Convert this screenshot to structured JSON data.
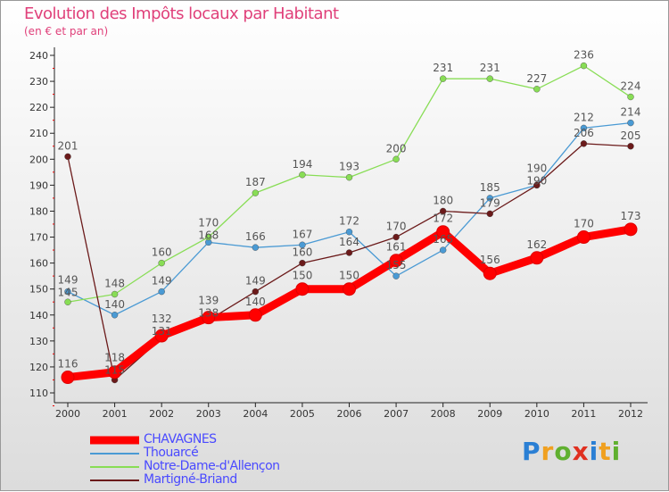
{
  "chart_data": {
    "type": "line",
    "title": "Evolution des Impôts locaux par Habitant",
    "subtitle": "(en € et par an)",
    "xlabel": "",
    "ylabel": "",
    "x": [
      "2000",
      "2001",
      "2002",
      "2003",
      "2004",
      "2005",
      "2006",
      "2007",
      "2008",
      "2009",
      "2010",
      "2011",
      "2012"
    ],
    "ylim": [
      110,
      240
    ],
    "yticks": [
      110,
      120,
      130,
      140,
      150,
      160,
      170,
      180,
      190,
      200,
      210,
      220,
      230,
      240
    ],
    "legend": "bottom-left",
    "series": [
      {
        "name": "CHAVAGNES",
        "color": "#ff0000",
        "values": [
          116,
          118,
          132,
          139,
          140,
          150,
          150,
          161,
          172,
          156,
          162,
          170,
          173
        ]
      },
      {
        "name": "Thouarcé",
        "color": "#4a9ad4",
        "values": [
          149,
          140,
          149,
          168,
          166,
          167,
          172,
          155,
          165,
          185,
          190,
          212,
          214
        ]
      },
      {
        "name": "Notre-Dame-d'Allençon",
        "color": "#88dd55",
        "values": [
          145,
          148,
          160,
          170,
          187,
          194,
          193,
          200,
          231,
          231,
          227,
          236,
          224
        ]
      },
      {
        "name": "Martigné-Briand",
        "color": "#6b1a1a",
        "values": [
          201,
          115,
          131,
          138,
          149,
          160,
          164,
          170,
          180,
          179,
          190,
          206,
          205
        ]
      }
    ]
  },
  "logo": "Proxiti"
}
